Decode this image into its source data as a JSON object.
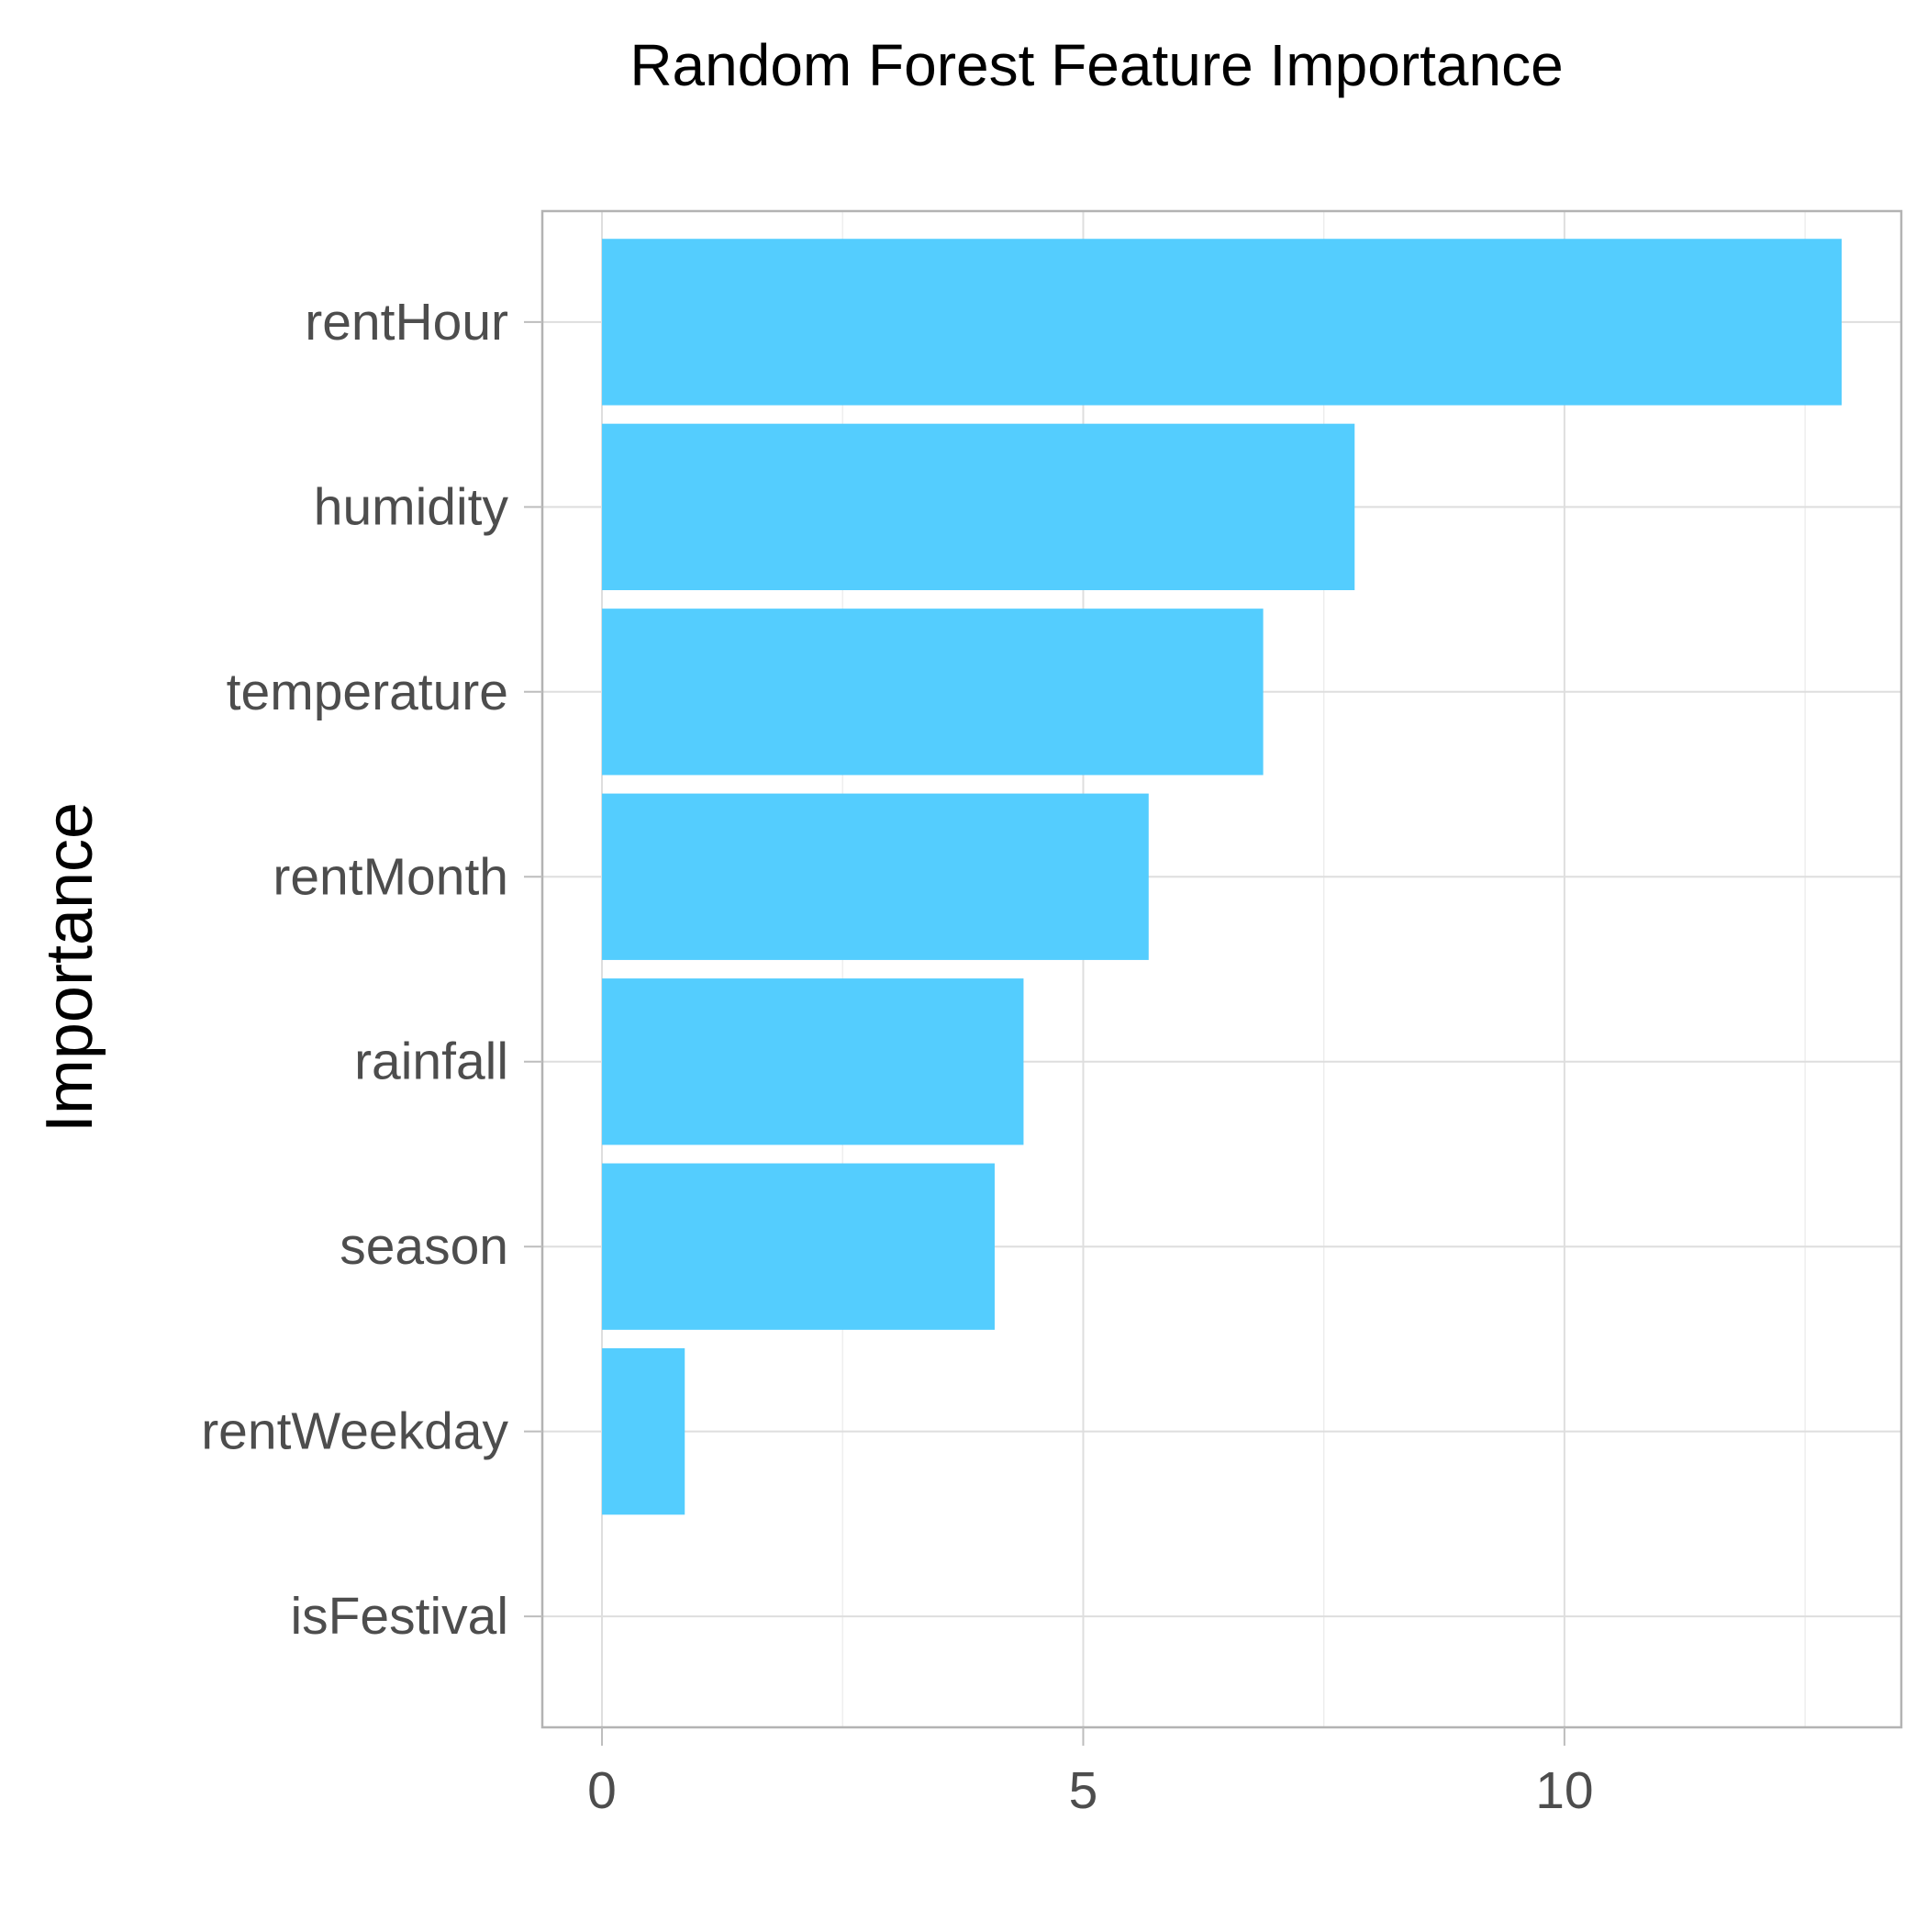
{
  "chart_data": {
    "type": "bar",
    "orientation": "horizontal",
    "title": "Random Forest Feature Importance",
    "xlabel": "",
    "ylabel": "Importance",
    "categories": [
      "rentHour",
      "humidity",
      "temperature",
      "rentMonth",
      "rainfall",
      "season",
      "rentWeekday",
      "isFestival"
    ],
    "values": [
      12.88,
      7.82,
      6.87,
      5.68,
      4.38,
      4.08,
      0.86,
      0.0
    ],
    "xlim": [
      -0.62,
      13.5
    ],
    "xticks": [
      0,
      5,
      10
    ],
    "xtick_labels": [
      "0",
      "5",
      "10"
    ],
    "bar_color": "#54cdfe",
    "grid": true,
    "legend": "none"
  }
}
